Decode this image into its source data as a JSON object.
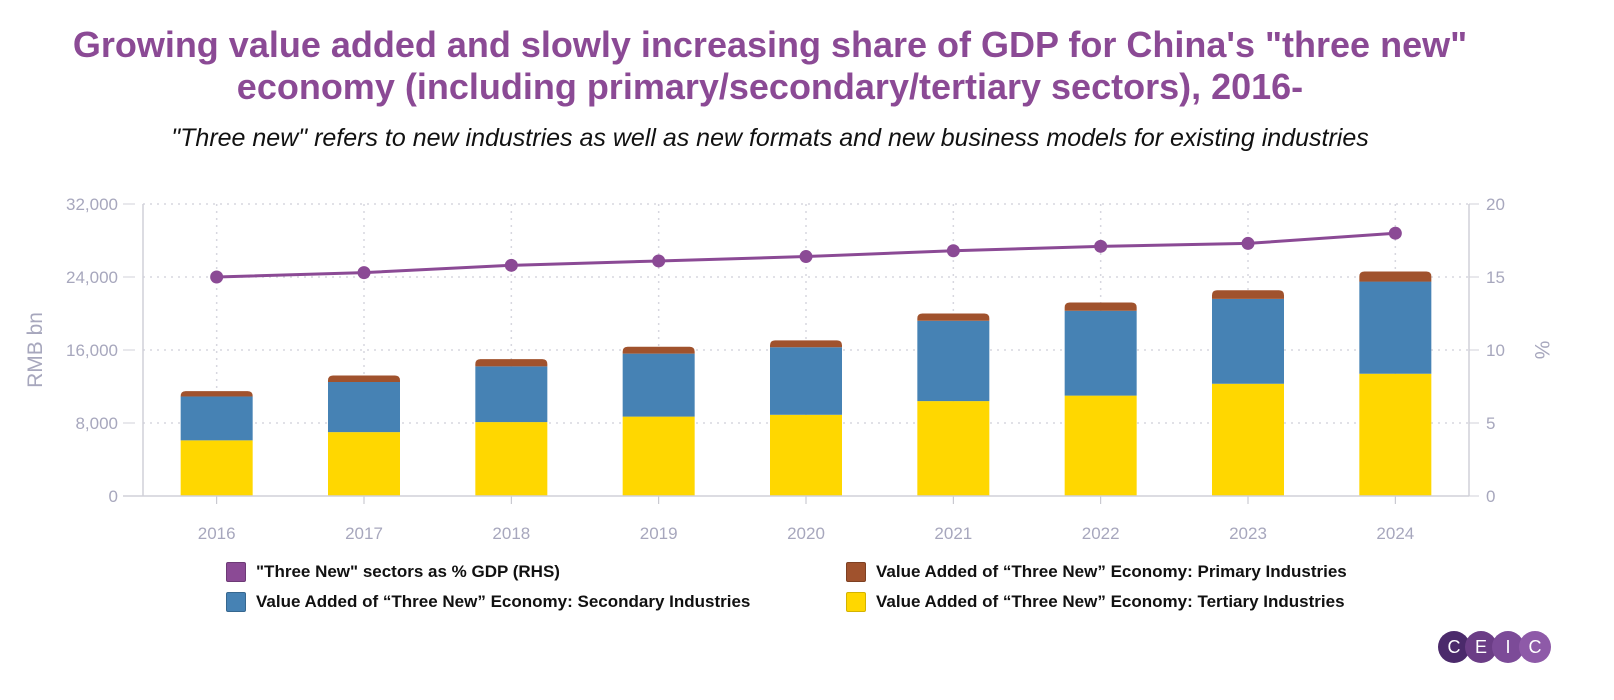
{
  "title": "Growing value added and slowly increasing share of GDP for China's \"three new\" economy (including primary/secondary/tertiary sectors), 2016-",
  "subtitle": "\"Three new\" refers to new industries as well as new formats and new business models for existing industries",
  "colors": {
    "title": "#8b4a95",
    "line": "#8b4a95",
    "primary": "#a0522d",
    "secondary": "#4682b4",
    "tertiary": "#ffd700",
    "axis_text": "#a7a7bd",
    "grid": "#d7d7df"
  },
  "chart_data": {
    "type": "bar",
    "categories": [
      "2016",
      "2017",
      "2018",
      "2019",
      "2020",
      "2021",
      "2022",
      "2023",
      "2024"
    ],
    "ylabel": "RMB bn",
    "y2label": "%",
    "ylim": [
      0,
      32000
    ],
    "y2lim": [
      0,
      20
    ],
    "yticks": [
      "0",
      "8,000",
      "16,000",
      "24,000",
      "32,000"
    ],
    "y2ticks": [
      "0",
      "5",
      "10",
      "15",
      "20"
    ],
    "grid": true,
    "legend_position": "bottom",
    "series": [
      {
        "name": "Value Added of “Three New” Economy: Tertiary Industries",
        "kind": "bar",
        "color": "#ffd700",
        "values": [
          6100,
          7000,
          8100,
          8700,
          8900,
          10400,
          11000,
          12300,
          13400
        ]
      },
      {
        "name": "Value Added of “Three New” Economy: Secondary Industries",
        "kind": "bar",
        "color": "#4682b4",
        "values": [
          4800,
          5500,
          6100,
          6900,
          7400,
          8800,
          9300,
          9300,
          10100
        ]
      },
      {
        "name": "Value Added of “Three New” Economy: Primary Industries",
        "kind": "bar",
        "color": "#a0522d",
        "values": [
          600,
          700,
          800,
          750,
          750,
          800,
          900,
          950,
          1100
        ]
      },
      {
        "name": "\"Three New\" sectors as % GDP (RHS)",
        "kind": "line",
        "axis": "right",
        "color": "#8b4a95",
        "values": [
          15.0,
          15.3,
          15.8,
          16.1,
          16.4,
          16.8,
          17.1,
          17.3,
          18.0
        ]
      }
    ]
  },
  "legend": {
    "line_label": "\"Three New\" sectors as % GDP (RHS)",
    "primary_label": "Value Added of “Three New” Economy: Primary Industries",
    "secondary_label": "Value Added of “Three New” Economy: Secondary Industries",
    "tertiary_label": "Value Added of “Three New” Economy: Tertiary Industries"
  },
  "logo": {
    "letters": [
      "C",
      "E",
      "I",
      "C"
    ]
  }
}
